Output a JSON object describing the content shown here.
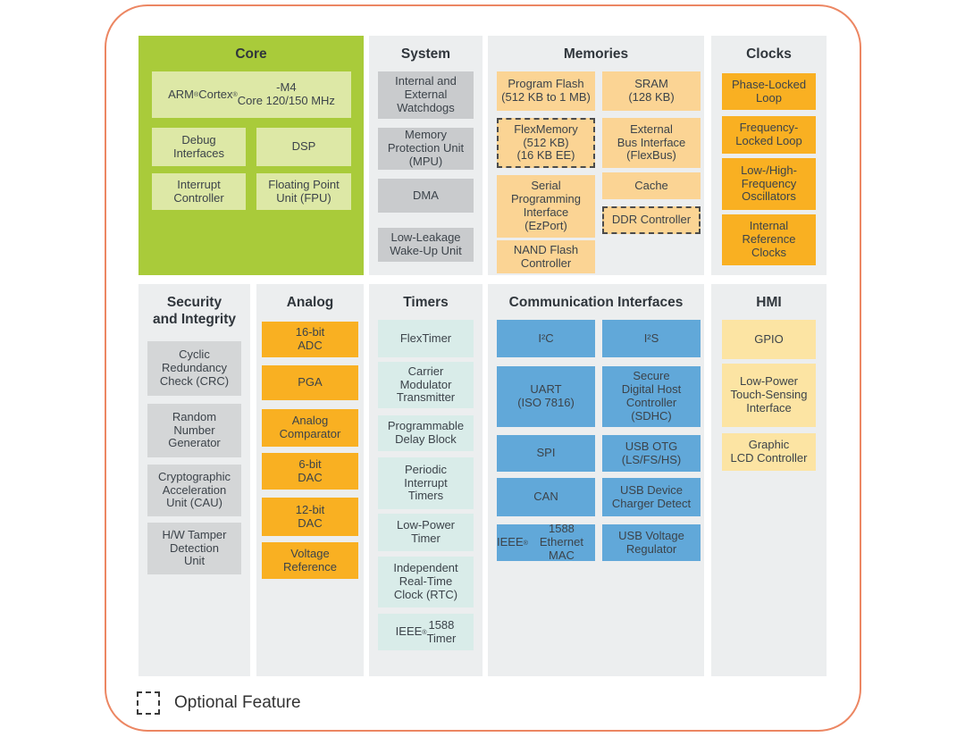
{
  "colors": {
    "frame_border": "#ec8662",
    "panel_background": "#eceeef",
    "core_green": "#a9cb3a",
    "core_block_green": "#dde8a6",
    "system_gray": "#c9cbcd",
    "security_gray": "#d4d6d7",
    "memories_tan": "#fbd494",
    "clocks_analog_orange": "#f9b022",
    "timers_teal": "#d9ece9",
    "communication_blue": "#61a8d9",
    "hmi_yellow": "#fce4a3"
  },
  "legend": {
    "label": "Optional Feature"
  },
  "panels": {
    "core": {
      "title": "Core",
      "blocks": [
        {
          "label": "ARM® Cortex®-M4\nCore 120/150 MHz"
        },
        {
          "label": "Debug\nInterfaces"
        },
        {
          "label": "DSP"
        },
        {
          "label": "Interrupt\nController"
        },
        {
          "label": "Floating Point\nUnit (FPU)"
        }
      ]
    },
    "system": {
      "title": "System",
      "blocks": [
        {
          "label": "Internal and\nExternal\nWatchdogs"
        },
        {
          "label": "Memory\nProtection Unit\n(MPU)"
        },
        {
          "label": "DMA"
        },
        {
          "label": "Low-Leakage\nWake-Up Unit"
        }
      ]
    },
    "memories": {
      "title": "Memories",
      "blocks": [
        {
          "label": "Program Flash\n(512 KB to 1 MB)"
        },
        {
          "label": "SRAM\n(128 KB)"
        },
        {
          "label": "FlexMemory\n(512 KB)\n(16 KB EE)",
          "optional": true
        },
        {
          "label": "External\nBus Interface\n(FlexBus)"
        },
        {
          "label": "Serial\nProgramming\nInterface\n(EzPort)"
        },
        {
          "label": "Cache"
        },
        {
          "label": "DDR Controller",
          "optional": true
        },
        {
          "label": "NAND Flash\nController"
        }
      ]
    },
    "clocks": {
      "title": "Clocks",
      "blocks": [
        {
          "label": "Phase-Locked\nLoop"
        },
        {
          "label": "Frequency-\nLocked Loop"
        },
        {
          "label": "Low-/High-\nFrequency\nOscillators"
        },
        {
          "label": "Internal\nReference\nClocks"
        }
      ]
    },
    "security": {
      "title": "Security\nand Integrity",
      "blocks": [
        {
          "label": "Cyclic\nRedundancy\nCheck (CRC)"
        },
        {
          "label": "Random\nNumber\nGenerator"
        },
        {
          "label": "Cryptographic\nAcceleration\nUnit (CAU)"
        },
        {
          "label": "H/W Tamper\nDetection\nUnit"
        }
      ]
    },
    "analog": {
      "title": "Analog",
      "blocks": [
        {
          "label": "16-bit\nADC"
        },
        {
          "label": "PGA"
        },
        {
          "label": "Analog\nComparator"
        },
        {
          "label": "6-bit\nDAC"
        },
        {
          "label": "12-bit\nDAC"
        },
        {
          "label": "Voltage\nReference"
        }
      ]
    },
    "timers": {
      "title": "Timers",
      "blocks": [
        {
          "label": "FlexTimer"
        },
        {
          "label": "Carrier\nModulator\nTransmitter"
        },
        {
          "label": "Programmable\nDelay Block"
        },
        {
          "label": "Periodic\nInterrupt\nTimers"
        },
        {
          "label": "Low-Power\nTimer"
        },
        {
          "label": "Independent\nReal-Time\nClock (RTC)"
        },
        {
          "label": "IEEE® 1588\nTimer"
        }
      ]
    },
    "communication": {
      "title": "Communication Interfaces",
      "blocks": [
        {
          "label": "I²C"
        },
        {
          "label": "I²S"
        },
        {
          "label": "UART\n(ISO 7816)"
        },
        {
          "label": "Secure\nDigital Host\nController\n(SDHC)"
        },
        {
          "label": "SPI"
        },
        {
          "label": "USB OTG\n(LS/FS/HS)"
        },
        {
          "label": "CAN"
        },
        {
          "label": "USB Device\nCharger Detect"
        },
        {
          "label": "IEEE® 1588\nEthernet MAC"
        },
        {
          "label": "USB Voltage\nRegulator"
        }
      ]
    },
    "hmi": {
      "title": "HMI",
      "blocks": [
        {
          "label": "GPIO"
        },
        {
          "label": "Low-Power\nTouch-Sensing\nInterface"
        },
        {
          "label": "Graphic\nLCD Controller"
        }
      ]
    }
  }
}
